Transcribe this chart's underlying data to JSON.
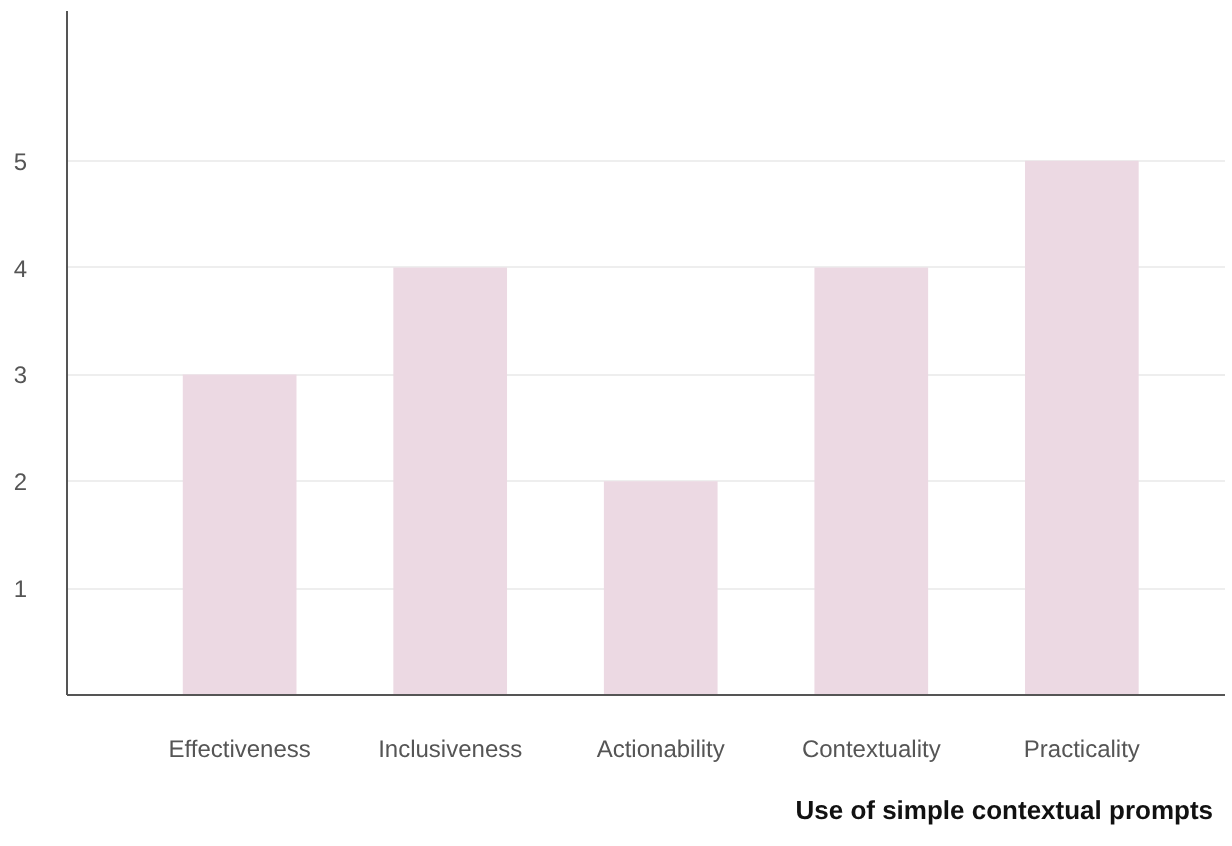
{
  "chart_data": {
    "type": "bar",
    "xlabel": "Use of simple contextual prompts",
    "categories": [
      "Effectiveness",
      "Inclusiveness",
      "Actionability",
      "Contextuality",
      "Practicality"
    ],
    "values": [
      3,
      4,
      2,
      4,
      5
    ],
    "color": "#ecd9e3",
    "ylim": [
      0,
      6.4
    ],
    "yticks": [
      1,
      2,
      3,
      4,
      5
    ],
    "grid": "y"
  }
}
